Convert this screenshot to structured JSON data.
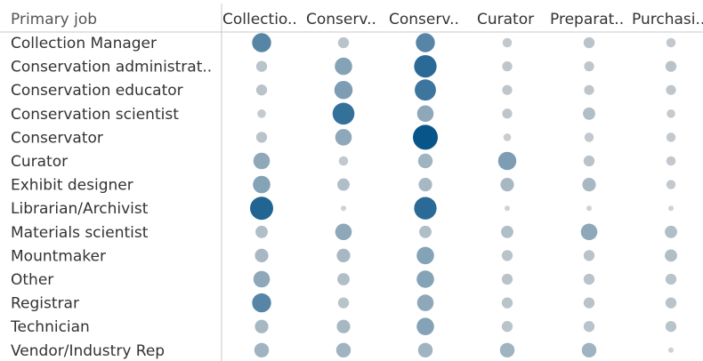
{
  "chart_data": {
    "type": "scatter",
    "row_header": "Primary job",
    "columns": [
      "Collectio..",
      "Conserv..",
      "Conserv..",
      "Curator",
      "Preparat..",
      "Purchasi.."
    ],
    "rows": [
      "Collection Manager",
      "Conservation administrat..",
      "Conservation educator",
      "Conservation scientist",
      "Conservator",
      "Curator",
      "Exhibit designer",
      "Librarian/Archivist",
      "Materials scientist",
      "Mountmaker",
      "Other",
      "Registrar",
      "Technician",
      "Vendor/Industry Rep"
    ],
    "values": [
      [
        0.55,
        0.15,
        0.55,
        0.1,
        0.15,
        0.1
      ],
      [
        0.15,
        0.45,
        0.8,
        0.12,
        0.12,
        0.15
      ],
      [
        0.15,
        0.5,
        0.7,
        0.12,
        0.12,
        0.12
      ],
      [
        0.08,
        0.75,
        0.4,
        0.12,
        0.2,
        0.08
      ],
      [
        0.15,
        0.4,
        1.0,
        0.06,
        0.1,
        0.1
      ],
      [
        0.4,
        0.1,
        0.3,
        0.5,
        0.15,
        0.1
      ],
      [
        0.45,
        0.2,
        0.25,
        0.25,
        0.25,
        0.1
      ],
      [
        0.85,
        0.02,
        0.8,
        0.02,
        0.02,
        0.02
      ],
      [
        0.2,
        0.4,
        0.2,
        0.2,
        0.4,
        0.2
      ],
      [
        0.25,
        0.25,
        0.45,
        0.15,
        0.15,
        0.2
      ],
      [
        0.4,
        0.2,
        0.45,
        0.15,
        0.15,
        0.15
      ],
      [
        0.55,
        0.15,
        0.4,
        0.15,
        0.15,
        0.15
      ],
      [
        0.25,
        0.25,
        0.45,
        0.15,
        0.15,
        0.15
      ],
      [
        0.3,
        0.3,
        0.3,
        0.3,
        0.3,
        0.02
      ]
    ],
    "color_low": "#d3d3d3",
    "color_high": "#08558a",
    "size_encodes_value": true
  }
}
